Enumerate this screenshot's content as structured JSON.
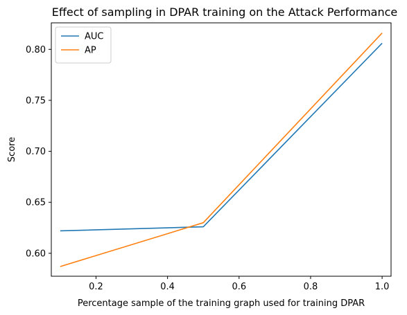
{
  "chart_data": {
    "type": "line",
    "title": "Effect of sampling in DPAR training on the Attack Performance",
    "xlabel": "Percentage sample of the training graph used for training DPAR",
    "ylabel": "Score",
    "xlim": [
      0.075,
      1.025
    ],
    "ylim": [
      0.5775,
      0.826
    ],
    "xticks": [
      0.2,
      0.4,
      0.6,
      0.8,
      1.0
    ],
    "xtick_labels": [
      "0.2",
      "0.4",
      "0.6",
      "0.8",
      "1.0"
    ],
    "yticks": [
      0.6,
      0.65,
      0.7,
      0.75,
      0.8
    ],
    "ytick_labels": [
      "0.60",
      "0.65",
      "0.70",
      "0.75",
      "0.80"
    ],
    "grid": false,
    "legend_position": "top-left",
    "series": [
      {
        "name": "AUC",
        "color": "#1f77b4",
        "x": [
          0.1,
          0.5,
          1.0
        ],
        "y": [
          0.622,
          0.626,
          0.806
        ]
      },
      {
        "name": "AP",
        "color": "#ff7f0e",
        "x": [
          0.1,
          0.5,
          1.0
        ],
        "y": [
          0.587,
          0.63,
          0.816
        ]
      }
    ]
  }
}
